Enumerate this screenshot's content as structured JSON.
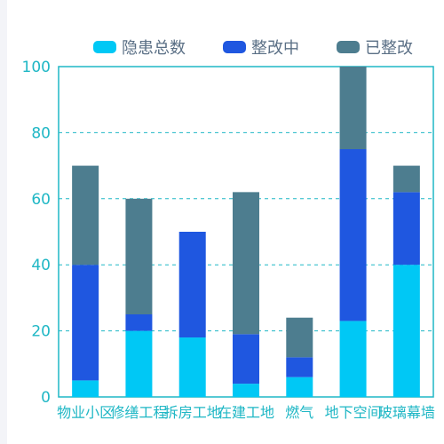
{
  "chart_data": {
    "type": "bar",
    "stacked": true,
    "categories": [
      "物业小区",
      "修缮工程",
      "拆房工地",
      "在建工地",
      "燃气",
      "地下空间",
      "玻璃幕墙"
    ],
    "series": [
      {
        "name": "隐患总数",
        "values": [
          5,
          20,
          18,
          4,
          6,
          23,
          40
        ],
        "color": "#00c8f5"
      },
      {
        "name": "整改中",
        "values": [
          35,
          5,
          32,
          15,
          6,
          52,
          22
        ],
        "color": "#1f57e0"
      },
      {
        "name": "已整改",
        "values": [
          30,
          35,
          0,
          43,
          12,
          25,
          8
        ],
        "color": "#4d7d8f"
      }
    ],
    "ylim": [
      0,
      100
    ],
    "yticks": [
      0,
      20,
      40,
      60,
      80,
      100
    ],
    "grid": true,
    "legend_position": "top",
    "axis_color": "#1fb7c5"
  }
}
